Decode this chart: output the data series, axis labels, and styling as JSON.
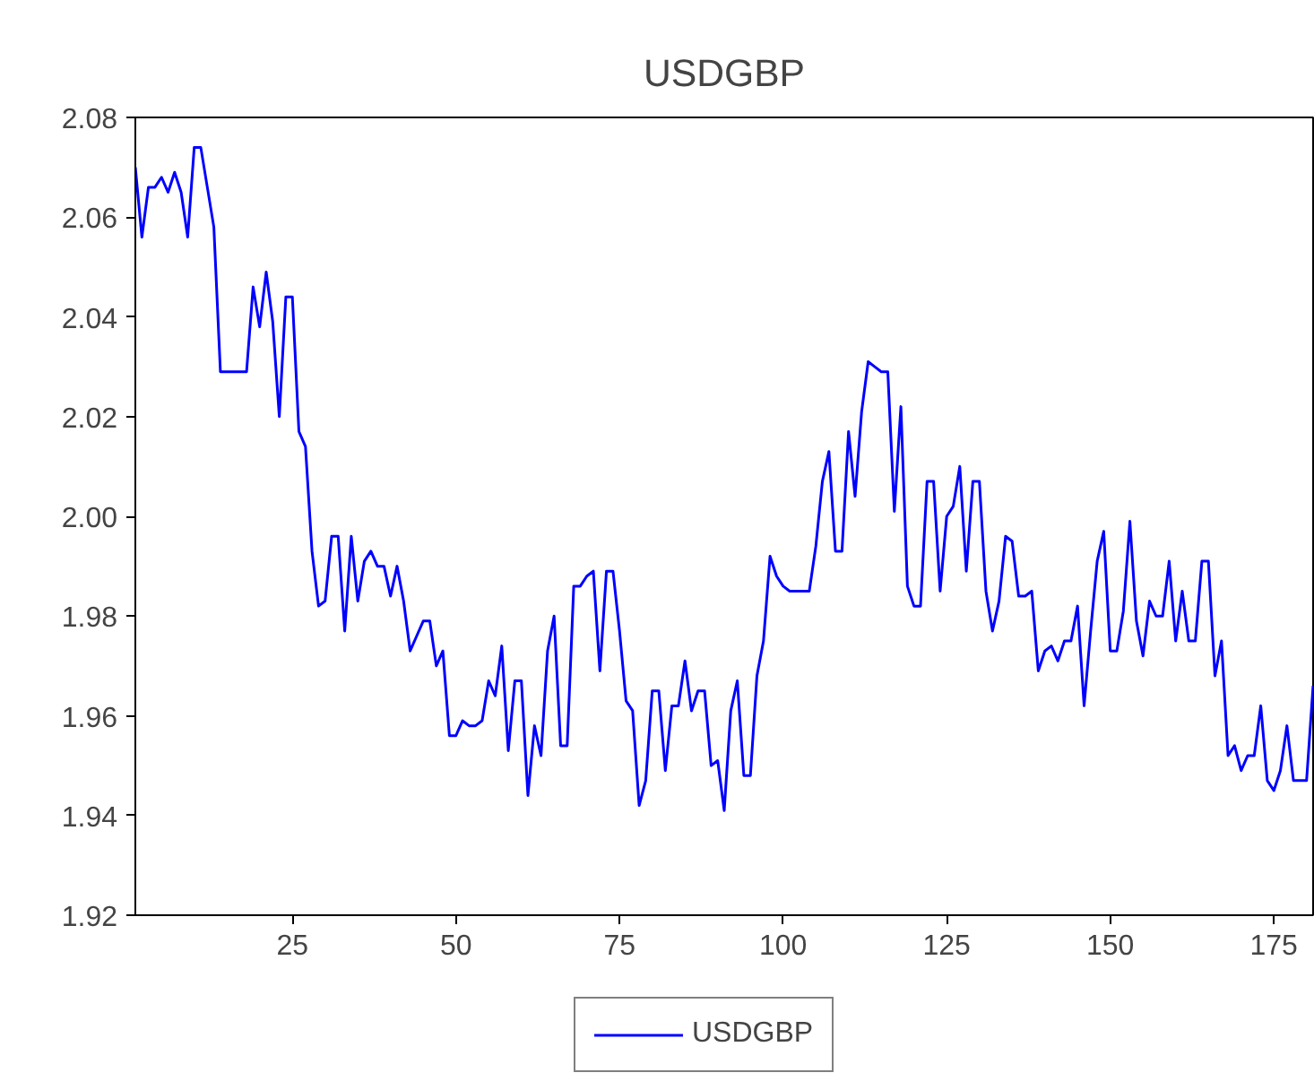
{
  "chart_data": {
    "type": "line",
    "title": "USDGBP",
    "x": [
      1,
      2,
      3,
      4,
      5,
      6,
      7,
      8,
      9,
      10,
      11,
      12,
      13,
      14,
      15,
      16,
      17,
      18,
      19,
      20,
      21,
      22,
      23,
      24,
      25,
      26,
      27,
      28,
      29,
      30,
      31,
      32,
      33,
      34,
      35,
      36,
      37,
      38,
      39,
      40,
      41,
      42,
      43,
      44,
      45,
      46,
      47,
      48,
      49,
      50,
      51,
      52,
      53,
      54,
      55,
      56,
      57,
      58,
      59,
      60,
      61,
      62,
      63,
      64,
      65,
      66,
      67,
      68,
      69,
      70,
      71,
      72,
      73,
      74,
      75,
      76,
      77,
      78,
      79,
      80,
      81,
      82,
      83,
      84,
      85,
      86,
      87,
      88,
      89,
      90,
      91,
      92,
      93,
      94,
      95,
      96,
      97,
      98,
      99,
      100,
      101,
      102,
      103,
      104,
      105,
      106,
      107,
      108,
      109,
      110,
      111,
      112,
      113,
      114,
      115,
      116,
      117,
      118,
      119,
      120,
      121,
      122,
      123,
      124,
      125,
      126,
      127,
      128,
      129,
      130,
      131,
      132,
      133,
      134,
      135,
      136,
      137,
      138,
      139,
      140,
      141,
      142,
      143,
      144,
      145,
      146,
      147,
      148,
      149,
      150,
      151,
      152,
      153,
      154,
      155,
      156,
      157,
      158,
      159,
      160,
      161,
      162,
      163,
      164,
      165,
      166,
      167,
      168,
      169,
      170,
      171,
      172,
      173,
      174,
      175,
      176,
      177,
      178,
      179,
      180,
      181
    ],
    "series": [
      {
        "name": "USDGBP",
        "color": "#0000ff",
        "values": [
          2.07,
          2.056,
          2.066,
          2.066,
          2.068,
          2.065,
          2.069,
          2.065,
          2.056,
          2.074,
          2.074,
          2.066,
          2.058,
          2.029,
          2.029,
          2.029,
          2.029,
          2.029,
          2.046,
          2.038,
          2.049,
          2.039,
          2.02,
          2.044,
          2.044,
          2.017,
          2.014,
          1.993,
          1.982,
          1.983,
          1.996,
          1.996,
          1.977,
          1.996,
          1.983,
          1.991,
          1.993,
          1.99,
          1.99,
          1.984,
          1.99,
          1.983,
          1.973,
          1.976,
          1.979,
          1.979,
          1.97,
          1.973,
          1.956,
          1.956,
          1.959,
          1.958,
          1.958,
          1.959,
          1.967,
          1.964,
          1.974,
          1.953,
          1.967,
          1.967,
          1.944,
          1.958,
          1.952,
          1.973,
          1.98,
          1.954,
          1.954,
          1.986,
          1.986,
          1.988,
          1.989,
          1.969,
          1.989,
          1.989,
          1.977,
          1.963,
          1.961,
          1.942,
          1.947,
          1.965,
          1.965,
          1.949,
          1.962,
          1.962,
          1.971,
          1.961,
          1.965,
          1.965,
          1.95,
          1.951,
          1.941,
          1.961,
          1.967,
          1.948,
          1.948,
          1.968,
          1.975,
          1.992,
          1.988,
          1.986,
          1.985,
          1.985,
          1.985,
          1.985,
          1.994,
          2.007,
          2.013,
          1.993,
          1.993,
          2.017,
          2.004,
          2.021,
          2.031,
          2.03,
          2.029,
          2.029,
          2.001,
          2.022,
          1.986,
          1.982,
          1.982,
          2.007,
          2.007,
          1.985,
          2.0,
          2.002,
          2.01,
          1.989,
          2.007,
          2.007,
          1.985,
          1.977,
          1.983,
          1.996,
          1.995,
          1.984,
          1.984,
          1.985,
          1.969,
          1.973,
          1.974,
          1.971,
          1.975,
          1.975,
          1.982,
          1.962,
          1.977,
          1.991,
          1.997,
          1.973,
          1.973,
          1.981,
          1.999,
          1.979,
          1.972,
          1.983,
          1.98,
          1.98,
          1.991,
          1.975,
          1.985,
          1.975,
          1.975,
          1.991,
          1.991,
          1.968,
          1.975,
          1.952,
          1.954,
          1.949,
          1.952,
          1.952,
          1.962,
          1.947,
          1.945,
          1.949,
          1.958,
          1.947,
          1.947,
          1.947,
          1.966
        ]
      }
    ],
    "xlim": [
      1,
      181
    ],
    "xticks": [
      25,
      50,
      75,
      100,
      125,
      150,
      175
    ],
    "ylim": [
      1.92,
      2.08
    ],
    "yticks": [
      1.92,
      1.94,
      1.96,
      1.98,
      {
        "value": 2.0,
        "label": "2.00"
      },
      2.02,
      2.04,
      2.06,
      2.08
    ],
    "grid": false,
    "legend": "bottom",
    "line_style": "solid",
    "marker": "none"
  }
}
